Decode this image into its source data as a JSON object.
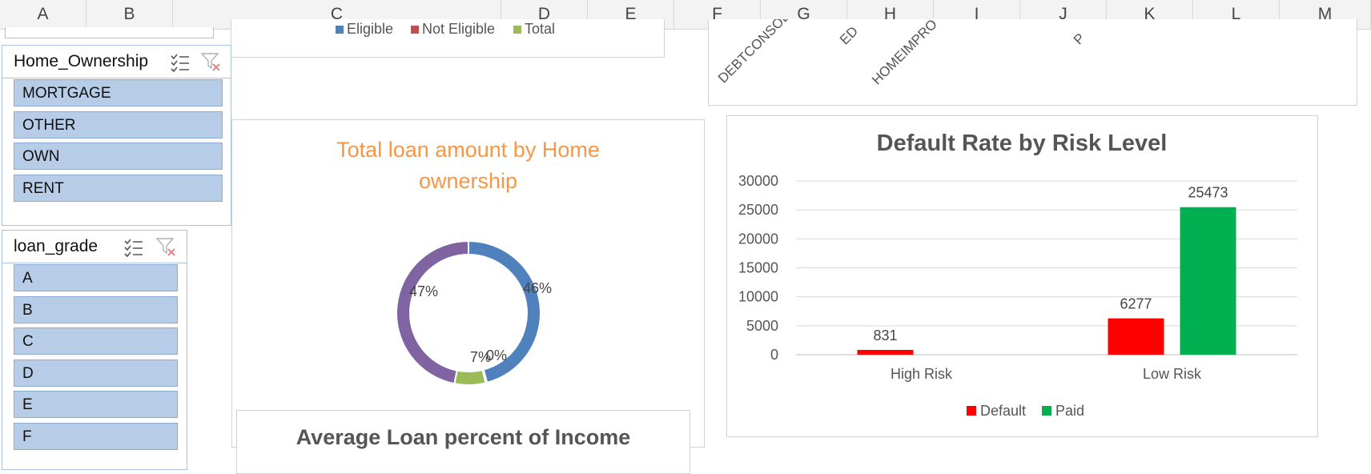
{
  "columns": [
    "A",
    "B",
    "C",
    "D",
    "E",
    "F",
    "G",
    "H",
    "I",
    "J",
    "K",
    "L",
    "M"
  ],
  "top_chart_fragment": {
    "legend": [
      {
        "label": "Eligible",
        "color": "#4f81bd"
      },
      {
        "label": "Not Eligible",
        "color": "#c0504d"
      },
      {
        "label": "Total",
        "color": "#9bbb59"
      }
    ]
  },
  "purpose_chart_fragment": {
    "tick_labels": [
      "DEBTCONSOL",
      "ED",
      "HOMEIMPRO",
      "P"
    ]
  },
  "home_ownership_slicer": {
    "title": "Home_Ownership",
    "items": [
      "MORTGAGE",
      "OTHER",
      "OWN",
      "RENT"
    ]
  },
  "loan_grade_slicer": {
    "title": "loan_grade",
    "items": [
      "A",
      "B",
      "C",
      "D",
      "E",
      "F"
    ]
  },
  "donut_chart": {
    "title_line1": "Total loan amount by Home",
    "title_line2": "ownership",
    "title_color": "#f79646"
  },
  "bottom_chart_fragment": {
    "title": "Average Loan percent of Income"
  },
  "chart_data": [
    {
      "type": "pie",
      "variant": "donut",
      "slices": [
        {
          "label": "46%",
          "value": 46,
          "color": "#4f81bd"
        },
        {
          "label": "0%",
          "value": 0.3,
          "color": "#c0504d"
        },
        {
          "label": "7%",
          "value": 7,
          "color": "#9bbb59"
        },
        {
          "label": "47%",
          "value": 47,
          "color": "#8064a2"
        }
      ]
    },
    {
      "type": "bar",
      "title": "Default Rate by Risk Level",
      "categories": [
        "High Risk",
        "Low Risk"
      ],
      "series": [
        {
          "name": "Default",
          "color": "#ff0000",
          "values": [
            831,
            6277
          ]
        },
        {
          "name": "Paid",
          "color": "#00b050",
          "values": [
            0,
            25473
          ]
        }
      ],
      "ylim": [
        0,
        30000
      ],
      "yticks": [
        "30000",
        "25000",
        "20000",
        "15000",
        "10000",
        "5000",
        "0"
      ],
      "data_labels": [
        "831",
        "",
        "6277",
        "25473"
      ],
      "grid": true,
      "legend_position": "bottom"
    }
  ]
}
